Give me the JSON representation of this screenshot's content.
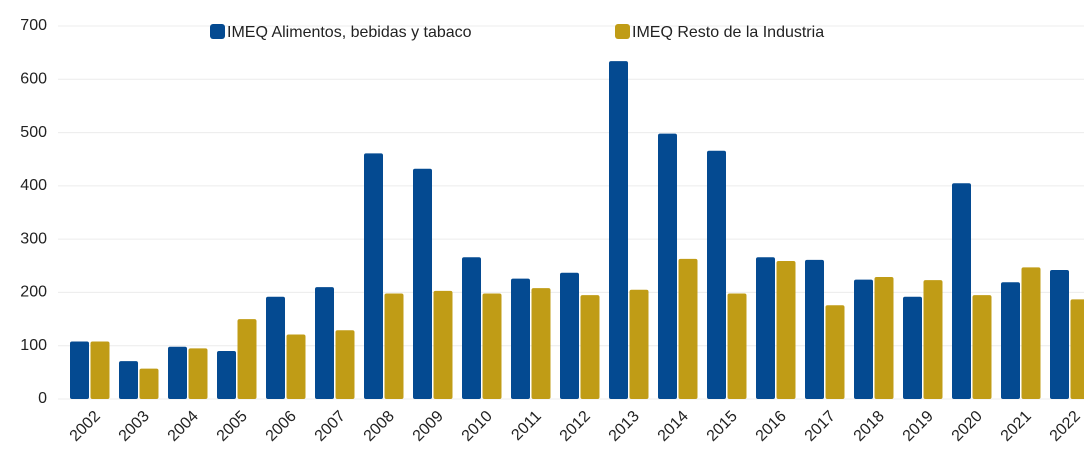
{
  "chart_data": {
    "type": "bar",
    "categories": [
      "2002",
      "2003",
      "2004",
      "2005",
      "2006",
      "2007",
      "2008",
      "2009",
      "2010",
      "2011",
      "2012",
      "2013",
      "2014",
      "2015",
      "2016",
      "2017",
      "2018",
      "2019",
      "2020",
      "2021",
      "2022"
    ],
    "series": [
      {
        "name": "IMEQ Alimentos, bebidas y tabaco",
        "color": "#044a91",
        "values": [
          108,
          71,
          98,
          90,
          192,
          210,
          461,
          432,
          266,
          226,
          237,
          634,
          498,
          466,
          266,
          261,
          224,
          192,
          405,
          219,
          242
        ]
      },
      {
        "name": "IMEQ Resto de la Industria",
        "color": "#c09c16",
        "values": [
          108,
          57,
          95,
          150,
          121,
          129,
          198,
          203,
          198,
          208,
          195,
          205,
          263,
          198,
          259,
          176,
          229,
          223,
          195,
          247,
          187
        ]
      }
    ],
    "ylim": [
      0,
      700
    ],
    "yticks": [
      0,
      100,
      200,
      300,
      400,
      500,
      600,
      700
    ],
    "grid": true,
    "legend": "top"
  }
}
